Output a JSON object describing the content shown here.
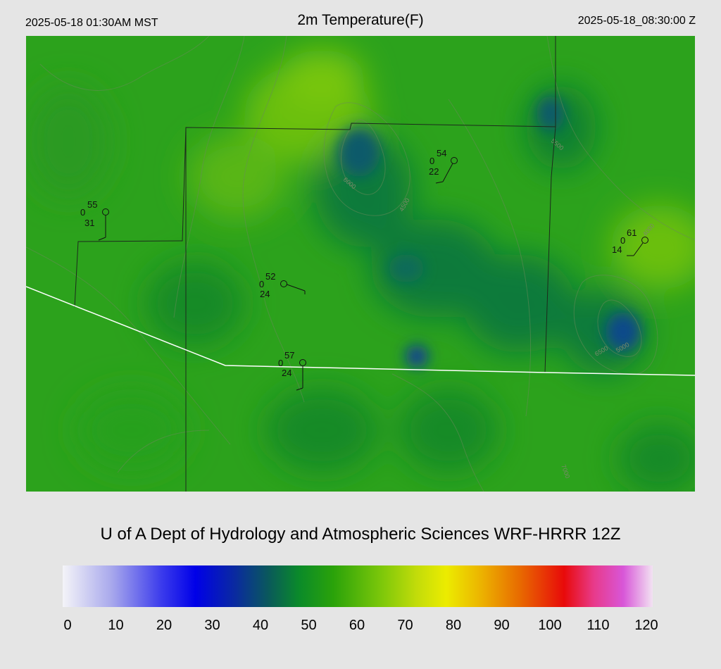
{
  "header": {
    "local_time": "2025-05-18 01:30AM MST",
    "title": "2m Temperature(F)",
    "valid_time": "2025-05-18_08:30:00 Z"
  },
  "credit": "U of A Dept of Hydrology and Atmospheric Sciences WRF-HRRR 12Z",
  "colorbar": {
    "ticks": [
      "0",
      "10",
      "20",
      "30",
      "40",
      "50",
      "60",
      "70",
      "80",
      "90",
      "100",
      "110",
      "120"
    ],
    "stops": [
      {
        "value": 0,
        "color": "#f4f4f8"
      },
      {
        "value": 10,
        "color": "#a8a8ec"
      },
      {
        "value": 20,
        "color": "#3c3cec"
      },
      {
        "value": 27,
        "color": "#0000e8"
      },
      {
        "value": 35,
        "color": "#0a2aa0"
      },
      {
        "value": 42,
        "color": "#0a5a5a"
      },
      {
        "value": 48,
        "color": "#0a8a2a"
      },
      {
        "value": 55,
        "color": "#2aa20a"
      },
      {
        "value": 65,
        "color": "#7ec80a"
      },
      {
        "value": 72,
        "color": "#c2dc0a"
      },
      {
        "value": 78,
        "color": "#ecec00"
      },
      {
        "value": 85,
        "color": "#ecb400"
      },
      {
        "value": 93,
        "color": "#e86a00"
      },
      {
        "value": 102,
        "color": "#e80a0a"
      },
      {
        "value": 108,
        "color": "#e83a8a"
      },
      {
        "value": 114,
        "color": "#d856d8"
      },
      {
        "value": 120,
        "color": "#f2e2f2"
      }
    ]
  },
  "stations": [
    {
      "id": "stn-1",
      "temp": "55",
      "mid": "0",
      "dew": "31"
    },
    {
      "id": "stn-2",
      "temp": "54",
      "mid": "0",
      "dew": "22"
    },
    {
      "id": "stn-3",
      "temp": "61",
      "mid": "0",
      "dew": "14"
    },
    {
      "id": "stn-4",
      "temp": "52",
      "mid": "0",
      "dew": "24"
    },
    {
      "id": "stn-5",
      "temp": "57",
      "mid": "0",
      "dew": "24"
    }
  ],
  "contour_labels": [
    "6000",
    "5000",
    "4500",
    "4000",
    "5500",
    "6500",
    "7000"
  ]
}
